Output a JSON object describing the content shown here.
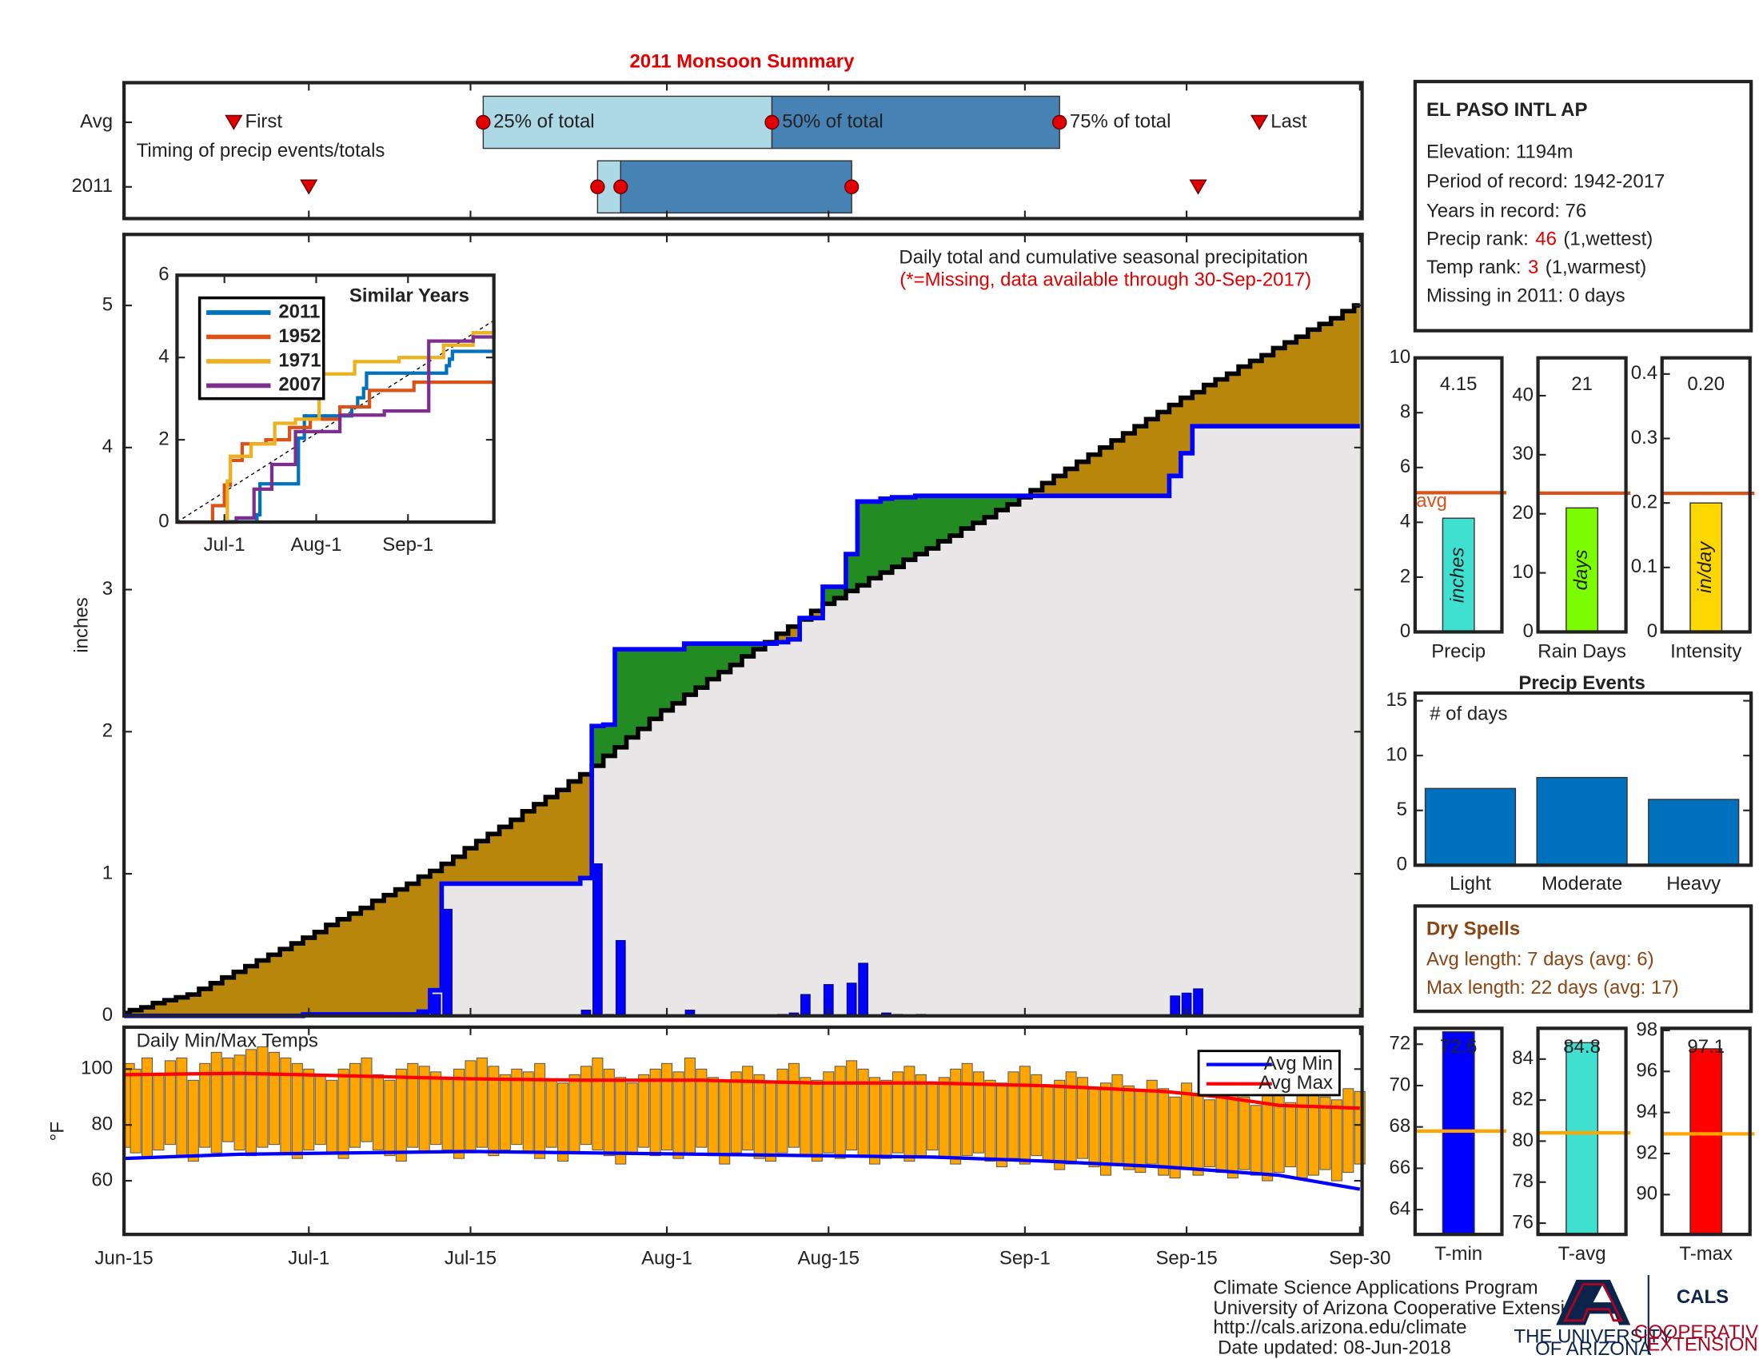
{
  "chart_data": [
    {
      "type": "timing",
      "title": "2011 Monsoon Summary",
      "note": "Timing of precip events/totals",
      "rows": [
        {
          "name": "Avg",
          "first": 9.5,
          "p25": 31.1,
          "p50": 56.1,
          "p75": 81,
          "last": 98.3
        },
        {
          "name": "2011",
          "first": 16,
          "p25": 41,
          "p50": 43,
          "p75": 63,
          "last": 93
        }
      ],
      "labels": {
        "first": "First",
        "p25": "25% of total",
        "p50": "50% of total",
        "p75": "75% of total",
        "last": "Last"
      },
      "colors": {
        "lower": "#add8e6",
        "upper": "#4682b4",
        "marker": "#e00000"
      }
    },
    {
      "type": "precip",
      "title": "Daily total and cumulative seasonal precipitation",
      "subtitle": "(*=Missing, data available through 30-Sep-2017)",
      "ylabel": "inches",
      "ylim": [
        0,
        5.5
      ],
      "yticks": [
        0,
        1,
        2,
        3,
        4,
        5
      ],
      "daily": {
        "color": "#0000ff",
        "x": [
          16,
          26,
          27,
          28,
          40,
          41,
          42,
          43,
          49,
          57,
          58,
          59,
          61,
          63,
          64,
          66,
          67,
          69,
          91,
          92,
          93
        ],
        "values": [
          0.01,
          0.02,
          0.15,
          0.75,
          0.04,
          1.07,
          0.01,
          0.53,
          0.04,
          0.01,
          0.02,
          0.15,
          0.22,
          0.23,
          0.37,
          0.02,
          0.01,
          0.01,
          0.14,
          0.16,
          0.19
        ]
      },
      "average": {
        "color": "#000000",
        "values": [
          0.02,
          0.04,
          0.06,
          0.09,
          0.11,
          0.13,
          0.15,
          0.19,
          0.23,
          0.27,
          0.31,
          0.35,
          0.39,
          0.43,
          0.47,
          0.51,
          0.55,
          0.59,
          0.64,
          0.68,
          0.72,
          0.76,
          0.81,
          0.85,
          0.89,
          0.93,
          0.98,
          1.02,
          1.07,
          1.12,
          1.18,
          1.23,
          1.28,
          1.33,
          1.38,
          1.44,
          1.49,
          1.54,
          1.59,
          1.65,
          1.7,
          1.76,
          1.83,
          1.89,
          1.96,
          2.02,
          2.09,
          2.15,
          2.2,
          2.26,
          2.31,
          2.37,
          2.42,
          2.47,
          2.53,
          2.58,
          2.63,
          2.69,
          2.74,
          2.79,
          2.85,
          2.9,
          2.94,
          2.99,
          3.03,
          3.08,
          3.12,
          3.16,
          3.21,
          3.25,
          3.29,
          3.34,
          3.38,
          3.43,
          3.47,
          3.51,
          3.56,
          3.6,
          3.65,
          3.7,
          3.75,
          3.8,
          3.85,
          3.9,
          3.95,
          4.0,
          4.05,
          4.1,
          4.15,
          4.2,
          4.25,
          4.3,
          4.35,
          4.39,
          4.44,
          4.48,
          4.52,
          4.57,
          4.61,
          4.65,
          4.7,
          4.74,
          4.78,
          4.83,
          4.87,
          4.91,
          4.96,
          5.0
        ]
      },
      "colors": {
        "above": "#228b22",
        "below": "#b8860b",
        "base": "#e8e6e6"
      }
    },
    {
      "type": "line",
      "title": "Similar Years",
      "ylim": [
        0,
        6
      ],
      "yticks": [
        0,
        2,
        4,
        6
      ],
      "xticks": [
        {
          "value": 16,
          "label": "Jul-1"
        },
        {
          "value": 47,
          "label": "Aug-1"
        },
        {
          "value": 78,
          "label": "Sep-1"
        }
      ],
      "series": [
        {
          "name": "2011",
          "color": "#0072bd",
          "x": [
            0,
            16,
            27,
            28,
            41,
            43,
            59,
            61,
            63,
            64,
            91,
            92,
            93,
            107
          ],
          "values": [
            0,
            0.01,
            0.18,
            0.93,
            2.04,
            2.58,
            2.8,
            3.02,
            3.25,
            3.62,
            3.8,
            3.96,
            4.15,
            4.15
          ]
        },
        {
          "name": "1952",
          "color": "#d95319",
          "x": [
            0,
            12,
            16,
            18,
            22,
            30,
            38,
            45,
            55,
            65,
            80,
            107
          ],
          "values": [
            0,
            0.4,
            0.9,
            1.5,
            1.9,
            2.0,
            2.3,
            2.5,
            2.8,
            3.2,
            3.4,
            3.5
          ]
        },
        {
          "name": "1971",
          "color": "#edb120",
          "x": [
            0,
            15,
            17,
            18,
            25,
            33,
            40,
            48,
            60,
            75,
            90,
            100,
            107
          ],
          "values": [
            0,
            0,
            1.0,
            1.6,
            1.9,
            2.4,
            2.5,
            3.6,
            3.9,
            4.0,
            4.3,
            4.6,
            4.9
          ]
        },
        {
          "name": "2007",
          "color": "#7e2f8e",
          "x": [
            0,
            20,
            26,
            32,
            40,
            55,
            70,
            83,
            85,
            100,
            107
          ],
          "values": [
            0,
            0.1,
            0.8,
            1.4,
            2.2,
            2.6,
            2.7,
            2.7,
            4.4,
            4.5,
            4.7
          ]
        }
      ]
    },
    {
      "type": "bar",
      "categories": [
        "Precip"
      ],
      "values": [
        4.15
      ],
      "average": 5.08,
      "average_label": "avg",
      "average_color": "#d95319",
      "unit": "inches",
      "color": "#40e0d0",
      "ylim": [
        0,
        10
      ],
      "yticks": [
        0,
        2,
        4,
        6,
        8,
        10
      ]
    },
    {
      "type": "bar",
      "categories": [
        "Rain Days"
      ],
      "values": [
        21
      ],
      "average": 23.5,
      "average_color": "#d95319",
      "unit": "days",
      "color": "#7cfc00",
      "ylim": [
        0,
        46.4
      ],
      "yticks": [
        0,
        10,
        20,
        30,
        40
      ]
    },
    {
      "type": "bar",
      "categories": [
        "Intensity"
      ],
      "values": [
        0.2
      ],
      "value_labels": [
        "0.20"
      ],
      "average": 0.215,
      "average_color": "#d95319",
      "unit": "in/day",
      "color": "#ffd700",
      "ylim": [
        0,
        0.425
      ],
      "yticks": [
        0,
        0.1,
        0.2,
        0.3,
        0.4
      ]
    },
    {
      "type": "bar",
      "title": "Precip Events",
      "annotation": "# of days",
      "categories": [
        "Light",
        "Moderate",
        "Heavy"
      ],
      "values": [
        7,
        8,
        6
      ],
      "color": "#0072bd",
      "ylim": [
        0,
        15.7
      ],
      "yticks": [
        0,
        5,
        10,
        15
      ]
    },
    {
      "type": "temps",
      "annotation": "Daily Min/Max Temps",
      "ylabel": "°F",
      "ylim": [
        40.8,
        115
      ],
      "yticks": [
        60,
        80,
        100
      ],
      "xlim": [
        0,
        107
      ],
      "xticks": [
        {
          "value": 0,
          "label": "Jun-15"
        },
        {
          "value": 16,
          "label": "Jul-1"
        },
        {
          "value": 30,
          "label": "Jul-15"
        },
        {
          "value": 47,
          "label": "Aug-1"
        },
        {
          "value": 61,
          "label": "Aug-15"
        },
        {
          "value": 78,
          "label": "Sep-1"
        },
        {
          "value": 92,
          "label": "Sep-15"
        },
        {
          "value": 107,
          "label": "Sep-30"
        }
      ],
      "bar_color": "#ffa500",
      "tmax": [
        102,
        100,
        104,
        98,
        103,
        104,
        96,
        102,
        106,
        104,
        105,
        107,
        108,
        106,
        104,
        102,
        100,
        98,
        96,
        100,
        102,
        104,
        98,
        96,
        100,
        102,
        101,
        99,
        97,
        100,
        103,
        104,
        101,
        98,
        100,
        99,
        102,
        96,
        95,
        98,
        101,
        104,
        100,
        97,
        95,
        98,
        100,
        102,
        99,
        104,
        100,
        97,
        96,
        99,
        101,
        98,
        95,
        100,
        102,
        97,
        96,
        99,
        101,
        103,
        100,
        97,
        96,
        99,
        101,
        98,
        95,
        97,
        100,
        102,
        99,
        96,
        95,
        99,
        101,
        98,
        94,
        96,
        99,
        97,
        93,
        95,
        98,
        94,
        92,
        96,
        93,
        90,
        95,
        91,
        89,
        92,
        94,
        90,
        87,
        93,
        91,
        88,
        92,
        94,
        90,
        89,
        93,
        92
      ],
      "tmin": [
        72,
        70,
        68,
        71,
        73,
        69,
        67,
        72,
        70,
        74,
        71,
        69,
        72,
        73,
        70,
        68,
        71,
        73,
        70,
        68,
        72,
        74,
        71,
        69,
        67,
        72,
        70,
        73,
        71,
        68,
        70,
        72,
        69,
        71,
        73,
        70,
        68,
        72,
        67,
        70,
        73,
        71,
        69,
        66,
        70,
        72,
        69,
        71,
        68,
        70,
        72,
        69,
        66,
        70,
        71,
        68,
        67,
        70,
        72,
        69,
        67,
        70,
        68,
        71,
        69,
        66,
        68,
        70,
        67,
        69,
        71,
        68,
        66,
        69,
        70,
        67,
        65,
        68,
        66,
        69,
        67,
        64,
        66,
        68,
        65,
        62,
        66,
        64,
        63,
        66,
        62,
        61,
        64,
        62,
        65,
        63,
        61,
        64,
        62,
        60,
        63,
        65,
        61,
        62,
        64,
        60,
        63,
        66
      ],
      "series": [
        {
          "name": "Avg Min",
          "color": "#0000ff",
          "x": [
            0,
            10,
            20,
            30,
            40,
            50,
            60,
            70,
            80,
            90,
            95,
            100,
            107
          ],
          "values": [
            68,
            69.5,
            70,
            70.5,
            70,
            69.5,
            69,
            68.5,
            67,
            65,
            63.5,
            62,
            57
          ]
        },
        {
          "name": "Avg Max",
          "color": "#ff0000",
          "x": [
            0,
            10,
            20,
            30,
            40,
            50,
            60,
            70,
            80,
            85,
            90,
            95,
            100,
            107
          ],
          "values": [
            98,
            98.5,
            97.5,
            96.5,
            96,
            96,
            95,
            95,
            94,
            93,
            92,
            90,
            87,
            86
          ]
        }
      ]
    },
    {
      "type": "bar",
      "categories": [
        "T-min"
      ],
      "values": [
        72.6
      ],
      "average": 67.8,
      "average_color": "#ffa500",
      "color": "#0000ff",
      "ylim": [
        62.8,
        72.77
      ],
      "yticks": [
        64,
        66,
        68,
        70,
        72
      ]
    },
    {
      "type": "bar",
      "categories": [
        "T-avg"
      ],
      "values": [
        84.8
      ],
      "average": 80.4,
      "average_color": "#ffa500",
      "color": "#40e0d0",
      "ylim": [
        75.45,
        85.5
      ],
      "yticks": [
        76,
        78,
        80,
        82,
        84
      ]
    },
    {
      "type": "bar",
      "categories": [
        "T-max"
      ],
      "values": [
        97.1
      ],
      "average": 92.96,
      "average_color": "#ffa500",
      "color": "#ff0000",
      "ylim": [
        88.06,
        98.1
      ],
      "yticks": [
        90,
        92,
        94,
        96,
        98
      ]
    }
  ],
  "station": {
    "name": "EL PASO INTL AP",
    "lines": [
      "Elevation: 1194m",
      "Period of record: 1942-2017",
      "Years in record: 76"
    ],
    "precip_rank": {
      "label": "Precip rank:",
      "value": 46,
      "note": "(1,wettest)"
    },
    "temp_rank": {
      "label": "Temp rank:",
      "value": 3,
      "note": "(1,warmest)"
    },
    "missing": "Missing in 2011: 0 days"
  },
  "dry_spells": {
    "title": "Dry Spells",
    "lines": [
      "Avg length: 7 days (avg: 6)",
      "Max length: 22 days (avg: 17)"
    ]
  },
  "footer": {
    "lines": [
      "Climate Science Applications Program",
      "University of Arizona Cooperative Extension",
      "http://cals.arizona.edu/climate",
      "Date updated: 08-Jun-2018"
    ],
    "university": [
      "THE UNIVERSITY",
      "OF ARIZONA"
    ],
    "cals": "CALS",
    "extension": [
      "COOPERATIVE",
      "EXTENSION"
    ]
  }
}
